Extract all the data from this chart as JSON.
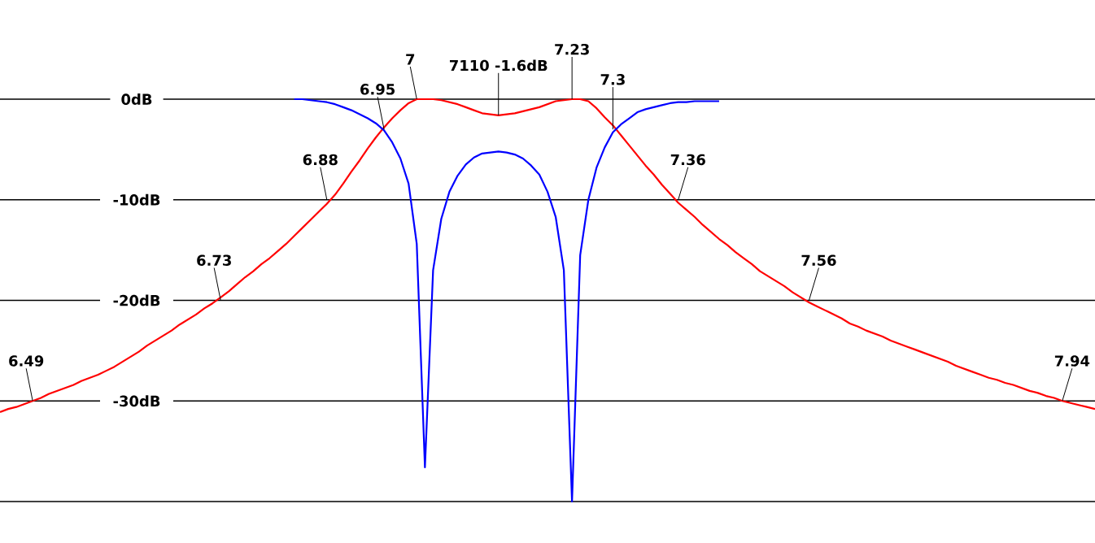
{
  "chart_data": {
    "type": "line",
    "grid": "y",
    "tick_labels": "y",
    "ylim": [
      -40,
      0
    ],
    "categories": [
      null,
      null,
      null,
      null,
      null,
      null,
      null,
      null,
      null,
      null,
      null,
      null,
      null,
      null,
      null,
      null,
      null,
      null,
      null,
      null,
      null,
      null,
      null,
      null,
      null,
      null,
      null,
      null,
      null,
      null,
      null,
      null,
      null,
      null,
      null,
      null,
      null,
      null,
      null,
      null,
      null,
      null,
      null,
      null,
      null,
      null,
      null,
      null,
      null,
      null,
      null,
      null,
      null,
      null,
      null,
      null,
      null,
      null,
      null,
      null,
      null,
      null,
      null,
      null,
      null,
      null,
      null,
      null,
      null,
      null,
      null,
      null,
      null,
      null,
      null,
      null,
      null,
      null,
      null,
      null,
      null,
      null,
      null,
      null,
      null,
      null,
      null,
      null,
      null,
      null,
      null,
      null,
      null,
      null,
      null,
      null,
      null,
      null,
      null,
      null,
      null,
      null,
      null,
      null,
      null,
      null,
      null,
      null,
      null,
      null,
      null,
      null,
      null,
      null,
      null,
      null,
      null,
      null,
      null,
      null,
      null,
      null,
      null,
      null,
      null,
      null,
      null,
      null,
      null,
      null,
      null,
      null,
      null,
      null,
      null
    ],
    "yticks": [
      {
        "value": 0,
        "label": "0dB"
      },
      {
        "value": -10,
        "label": "-10dB"
      },
      {
        "value": -20,
        "label": "-20dB"
      },
      {
        "value": -30,
        "label": "-30dB"
      },
      {
        "value": -40,
        "label": null
      }
    ],
    "series": [
      {
        "color": "#ff0000",
        "values": [
          -31.1,
          -30.8,
          -30.6,
          -30.3,
          -30.0,
          -29.7,
          -29.3,
          -29.0,
          -28.7,
          -28.4,
          -28.0,
          -27.7,
          -27.4,
          -27.0,
          -26.6,
          -26.1,
          -25.6,
          -25.1,
          -24.5,
          -24.0,
          -23.5,
          -23.0,
          -22.4,
          -21.9,
          -21.4,
          -20.8,
          -20.3,
          -19.7,
          -19.1,
          -18.4,
          -17.7,
          -17.1,
          -16.4,
          -15.8,
          -15.1,
          -14.4,
          -13.6,
          -12.8,
          -12.0,
          -11.2,
          -10.4,
          -9.5,
          -8.4,
          -7.2,
          -6.1,
          -4.9,
          -3.8,
          -2.8,
          -1.9,
          -1.1,
          -0.4,
          0,
          0,
          0,
          -0.1,
          -0.3,
          -0.5,
          -0.8,
          -1.1,
          -1.4,
          -1.5,
          -1.6,
          -1.5,
          -1.4,
          -1.2,
          -1.0,
          -0.8,
          -0.5,
          -0.2,
          -0.1,
          0,
          0,
          -0.2,
          -0.9,
          -1.8,
          -2.6,
          -3.6,
          -4.6,
          -5.6,
          -6.6,
          -7.5,
          -8.5,
          -9.4,
          -10.3,
          -11.0,
          -11.7,
          -12.5,
          -13.2,
          -13.9,
          -14.5,
          -15.2,
          -15.8,
          -16.4,
          -17.1,
          -17.6,
          -18.1,
          -18.6,
          -19.2,
          -19.7,
          -20.2,
          -20.6,
          -21.0,
          -21.4,
          -21.8,
          -22.3,
          -22.6,
          -23.0,
          -23.3,
          -23.6,
          -24.0,
          -24.3,
          -24.6,
          -24.9,
          -25.2,
          -25.5,
          -25.8,
          -26.1,
          -26.5,
          -26.8,
          -27.1,
          -27.4,
          -27.7,
          -27.9,
          -28.2,
          -28.4,
          -28.7,
          -29.0,
          -29.2,
          -29.5,
          -29.7,
          -30.0,
          -30.2,
          -30.4,
          -30.6,
          -30.8
        ]
      },
      {
        "color": "#0000ff",
        "values": [
          null,
          null,
          null,
          null,
          null,
          null,
          null,
          null,
          null,
          null,
          null,
          null,
          null,
          null,
          null,
          null,
          null,
          null,
          null,
          null,
          null,
          null,
          null,
          null,
          null,
          null,
          null,
          null,
          null,
          null,
          null,
          null,
          null,
          null,
          null,
          null,
          0,
          0,
          -0.1,
          -0.2,
          -0.3,
          -0.5,
          -0.8,
          -1.1,
          -1.5,
          -1.9,
          -2.4,
          -3.1,
          -4.3,
          -5.9,
          -8.4,
          -14.4,
          -36.6,
          -17.0,
          -11.9,
          -9.2,
          -7.6,
          -6.5,
          -5.8,
          -5.4,
          -5.3,
          -5.2,
          -5.3,
          -5.5,
          -5.9,
          -6.6,
          -7.5,
          -9.2,
          -11.7,
          -17.0,
          -40,
          -15.5,
          -10.0,
          -6.8,
          -4.8,
          -3.3,
          -2.5,
          -1.9,
          -1.3,
          -1.0,
          -0.8,
          -0.6,
          -0.4,
          -0.3,
          -0.3,
          -0.2,
          -0.2,
          -0.2,
          -0.2,
          null,
          null,
          null,
          null,
          null,
          null,
          null,
          null,
          null,
          null,
          null,
          null,
          null,
          null,
          null,
          null,
          null,
          null,
          null,
          null,
          null,
          null,
          null,
          null,
          null,
          null,
          null,
          null,
          null,
          null,
          null,
          null,
          null,
          null,
          null,
          null,
          null,
          null,
          null,
          null,
          null,
          null,
          null,
          null,
          null,
          null
        ]
      }
    ],
    "annotations": [
      {
        "text": "6.49",
        "y": -30
      },
      {
        "text": "6.73",
        "y": -20
      },
      {
        "text": "6.88",
        "y": -10
      },
      {
        "text": "6.95",
        "y": -3
      },
      {
        "text": "7",
        "y": 0
      },
      {
        "text": "7110 -1.6dB",
        "y": -1.6
      },
      {
        "text": "7.23",
        "y": 0
      },
      {
        "text": "7.3",
        "y": -3
      },
      {
        "text": "7.36",
        "y": -10
      },
      {
        "text": "7.56",
        "y": -20
      },
      {
        "text": "7.94",
        "y": -30
      }
    ]
  }
}
